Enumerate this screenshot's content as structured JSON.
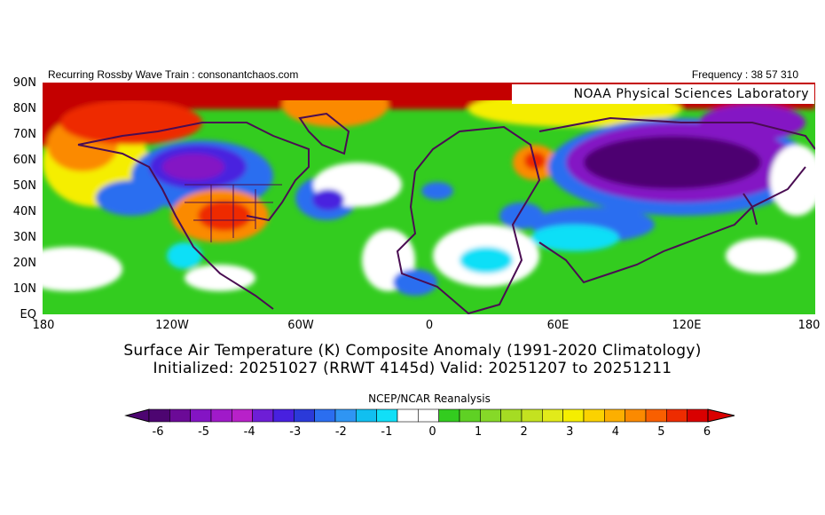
{
  "header": {
    "left": "Recurring Rossby Wave Train : consonantchaos.com",
    "right": "Frequency : 38 57 310"
  },
  "map": {
    "credit": "NOAA Physical Sciences Laboratory",
    "lat_labels": [
      "90N",
      "80N",
      "70N",
      "60N",
      "50N",
      "40N",
      "30N",
      "20N",
      "10N",
      "EQ"
    ],
    "lon_labels": [
      "180",
      "120W",
      "60W",
      "0",
      "60E",
      "120E",
      "180"
    ],
    "colors": {
      "anom_p6": "#c40000",
      "anom_p5": "#ee2c00",
      "anom_p4": "#fb8a00",
      "anom_p3": "#f5ee00",
      "anom_p2": "#a5dc23",
      "anom_p1": "#33cc1f",
      "anom_0": "#ffffff",
      "anom_m1": "#11dff7",
      "anom_m2": "#2b6ef0",
      "anom_m3": "#4820df",
      "anom_m5": "#8414c4",
      "anom_m6": "#4d0571",
      "coastline": "#4a0d52"
    }
  },
  "titles": {
    "line1": "Surface Air Temperature (K) Composite Anomaly (1991-2020 Climatology)",
    "line2": "Initialized: 20251027 (RRWT 4145d) Valid: 20251207 to 20251211"
  },
  "colorbar": {
    "title": "NCEP/NCAR Reanalysis",
    "ticks": [
      "-6",
      "-5",
      "-4",
      "-3",
      "-2",
      "-1",
      "0",
      "1",
      "2",
      "3",
      "4",
      "5",
      "6"
    ],
    "colors": [
      "#4d0571",
      "#6b0a97",
      "#8414c4",
      "#a01ac9",
      "#b821c9",
      "#6e1ed6",
      "#4820df",
      "#2b3ad9",
      "#2b6ef0",
      "#2f95f3",
      "#11bff0",
      "#11dff7",
      "#ffffff",
      "#ffffff",
      "#33cc1f",
      "#5fd124",
      "#86d928",
      "#a5dc23",
      "#c4e220",
      "#e2ea1a",
      "#f5ee00",
      "#fbd200",
      "#fcaf00",
      "#fb8a00",
      "#f95f00",
      "#ee2c00",
      "#d90000"
    ]
  }
}
